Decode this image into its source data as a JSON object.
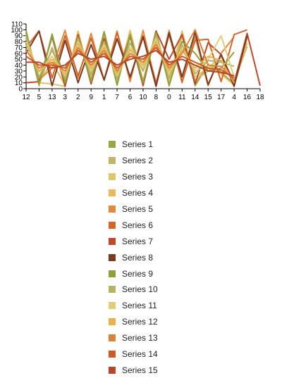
{
  "chart_data": {
    "type": "line",
    "title": "",
    "xlabel": "",
    "ylabel": "",
    "categories": [
      "12",
      "5",
      "13",
      "3",
      "2",
      "9",
      "1",
      "7",
      "6",
      "10",
      "8",
      "0",
      "11",
      "14",
      "15",
      "17",
      "4",
      "16",
      "18"
    ],
    "ylim": [
      0,
      110
    ],
    "yticks": [
      0,
      10,
      20,
      30,
      40,
      50,
      60,
      70,
      80,
      90,
      100,
      110
    ],
    "grid": false,
    "legend_position": "bottom-center",
    "series": [
      {
        "name": "Series 1",
        "color": "#9aa646",
        "values": [
          99,
          5,
          93,
          8,
          95,
          9,
          97,
          12,
          96,
          11,
          98,
          7,
          91,
          5,
          41,
          28,
          8,
          88,
          null
        ]
      },
      {
        "name": "Series 2",
        "color": "#c2b36a",
        "values": [
          95,
          6,
          70,
          12,
          92,
          18,
          90,
          9,
          88,
          14,
          96,
          10,
          95,
          15,
          30,
          48,
          11,
          72,
          null
        ]
      },
      {
        "name": "Series 3",
        "color": "#ddc66c",
        "values": [
          92,
          10,
          8,
          4,
          98,
          12,
          94,
          20,
          97,
          8,
          93,
          15,
          98,
          20,
          35,
          55,
          12,
          85,
          null
        ]
      },
      {
        "name": "Series 4",
        "color": "#e9b95c",
        "values": [
          90,
          12,
          45,
          6,
          96,
          15,
          92,
          10,
          99,
          12,
          95,
          8,
          94,
          10,
          42,
          25,
          6,
          78,
          null
        ]
      },
      {
        "name": "Series 5",
        "color": "#e08a40",
        "values": [
          85,
          15,
          35,
          99,
          18,
          94,
          14,
          98,
          12,
          99,
          8,
          99,
          10,
          88,
          5,
          60,
          88,
          null,
          null
        ]
      },
      {
        "name": "Series 6",
        "color": "#d2672a",
        "values": [
          70,
          98,
          18,
          90,
          22,
          86,
          15,
          95,
          18,
          90,
          10,
          92,
          12,
          82,
          84,
          12,
          92,
          100,
          null
        ]
      },
      {
        "name": "Series 7",
        "color": "#bc4a2d",
        "values": [
          10,
          12,
          88,
          4,
          92,
          8,
          85,
          20,
          90,
          5,
          98,
          50,
          92,
          8,
          78,
          58,
          10,
          94,
          5
        ]
      },
      {
        "name": "Series 8",
        "color": "#7a3a24",
        "values": [
          60,
          98,
          5,
          82,
          10,
          75,
          15,
          85,
          20,
          88,
          4,
          95,
          20,
          96,
          7,
          58,
          4,
          90,
          null
        ]
      },
      {
        "name": "Series 9",
        "color": "#8ea03c",
        "values": [
          96,
          8,
          90,
          10,
          88,
          12,
          96,
          6,
          92,
          10,
          95,
          5,
          80,
          60,
          30,
          35,
          62,
          null,
          null
        ]
      },
      {
        "name": "Series 10",
        "color": "#b6b266",
        "values": [
          88,
          20,
          65,
          18,
          85,
          24,
          80,
          16,
          78,
          30,
          90,
          18,
          75,
          25,
          48,
          45,
          38,
          null,
          null
        ]
      },
      {
        "name": "Series 11",
        "color": "#e1cd78",
        "values": [
          80,
          28,
          55,
          22,
          80,
          30,
          75,
          22,
          70,
          35,
          85,
          25,
          70,
          30,
          50,
          90,
          20,
          null,
          null
        ]
      },
      {
        "name": "Series 12",
        "color": "#ebb050",
        "values": [
          75,
          30,
          50,
          25,
          76,
          35,
          70,
          26,
          66,
          40,
          80,
          30,
          65,
          35,
          55,
          48,
          10,
          null,
          null
        ]
      },
      {
        "name": "Series 13",
        "color": "#d9823c",
        "values": [
          65,
          35,
          45,
          30,
          70,
          40,
          65,
          30,
          60,
          45,
          75,
          35,
          60,
          100,
          40,
          38,
          14,
          null,
          null
        ]
      },
      {
        "name": "Series 14",
        "color": "#cc5a24",
        "values": [
          55,
          40,
          40,
          35,
          65,
          45,
          60,
          35,
          55,
          50,
          70,
          40,
          55,
          45,
          35,
          32,
          18,
          null,
          null
        ]
      },
      {
        "name": "Series 15",
        "color": "#b6472a",
        "values": [
          45,
          45,
          35,
          40,
          60,
          50,
          55,
          40,
          50,
          55,
          65,
          45,
          50,
          40,
          30,
          28,
          22,
          null,
          null
        ]
      }
    ]
  }
}
